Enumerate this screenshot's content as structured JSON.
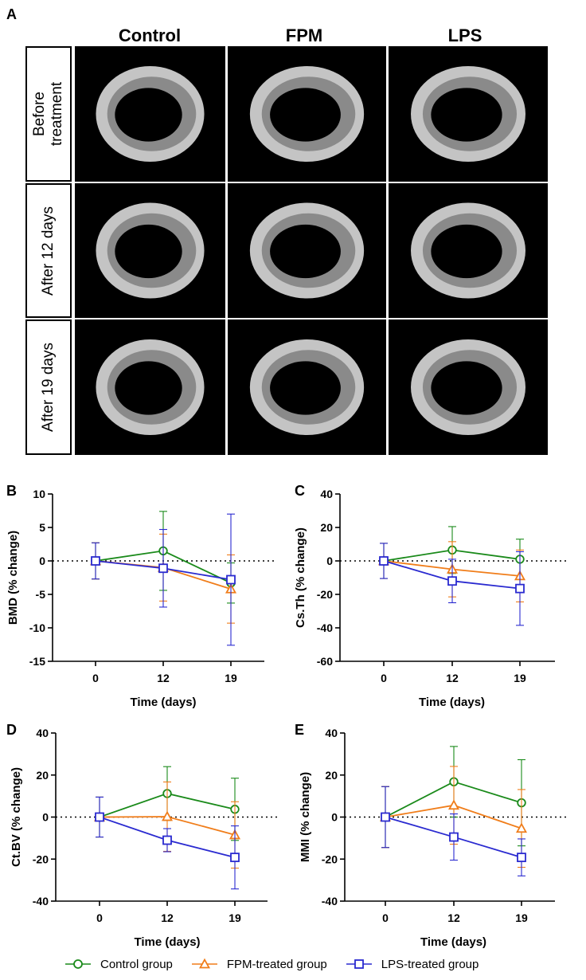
{
  "figure": {
    "panel_a_letter": "A",
    "columns": [
      "Control",
      "FPM",
      "LPS"
    ],
    "rows": [
      "Before\ntreatment",
      "After 12 days",
      "After 19 days"
    ]
  },
  "colors": {
    "control": "#1a8a1a",
    "fpm": "#f07d1a",
    "lps": "#2a2ad0"
  },
  "legend": [
    {
      "label": "Control group",
      "marker": "circle",
      "color": "#1a8a1a"
    },
    {
      "label": "FPM-treated group",
      "marker": "triangle",
      "color": "#f07d1a"
    },
    {
      "label": "LPS-treated group",
      "marker": "square",
      "color": "#2a2ad0"
    }
  ],
  "chart_data": [
    {
      "panel": "B",
      "type": "line",
      "title": "",
      "xlabel": "Time (days)",
      "ylabel": "BMD (% change)",
      "x": [
        0,
        12,
        19
      ],
      "xticks": [
        "0",
        "12",
        "19"
      ],
      "ylim": [
        -15,
        10
      ],
      "yticks": [
        -15,
        -10,
        -5,
        0,
        5,
        10
      ],
      "series": [
        {
          "name": "Control group",
          "values": [
            0,
            1.5,
            -3.3
          ],
          "err": [
            2.7,
            5.9,
            3.0
          ]
        },
        {
          "name": "FPM-treated group",
          "values": [
            0,
            -1.0,
            -4.2
          ],
          "err": [
            2.7,
            5.0,
            5.1
          ]
        },
        {
          "name": "LPS-treated group",
          "values": [
            0,
            -1.1,
            -2.8
          ],
          "err": [
            2.7,
            5.8,
            9.8
          ]
        }
      ]
    },
    {
      "panel": "C",
      "type": "line",
      "title": "",
      "xlabel": "Time (days)",
      "ylabel": "Cs.Th (% change)",
      "x": [
        0,
        12,
        19
      ],
      "xticks": [
        "0",
        "12",
        "19"
      ],
      "ylim": [
        -60,
        40
      ],
      "yticks": [
        -60,
        -40,
        -20,
        0,
        20,
        40
      ],
      "series": [
        {
          "name": "Control group",
          "values": [
            0,
            6.5,
            1.0
          ],
          "err": [
            10.5,
            14.0,
            12.0
          ]
        },
        {
          "name": "FPM-treated group",
          "values": [
            0,
            -5.0,
            -9.0
          ],
          "err": [
            10.5,
            16.5,
            15.5
          ]
        },
        {
          "name": "LPS-treated group",
          "values": [
            0,
            -12.0,
            -16.5
          ],
          "err": [
            10.5,
            13.0,
            22.0
          ]
        }
      ]
    },
    {
      "panel": "D",
      "type": "line",
      "title": "",
      "xlabel": "Time (days)",
      "ylabel": "Ct.BV (% change)",
      "x": [
        0,
        12,
        19
      ],
      "xticks": [
        "0",
        "12",
        "19"
      ],
      "ylim": [
        -40,
        40
      ],
      "yticks": [
        -40,
        -20,
        0,
        20,
        40
      ],
      "series": [
        {
          "name": "Control group",
          "values": [
            0,
            11.2,
            3.7
          ],
          "err": [
            9.5,
            12.8,
            14.8
          ]
        },
        {
          "name": "FPM-treated group",
          "values": [
            0,
            0.2,
            -8.5
          ],
          "err": [
            9.5,
            16.5,
            15.8
          ]
        },
        {
          "name": "LPS-treated group",
          "values": [
            0,
            -11.0,
            -19.2
          ],
          "err": [
            9.5,
            5.5,
            15.0
          ]
        }
      ]
    },
    {
      "panel": "E",
      "type": "line",
      "title": "",
      "xlabel": "Time (days)",
      "ylabel": "MMI (% change)",
      "x": [
        0,
        12,
        19
      ],
      "xticks": [
        "0",
        "12",
        "19"
      ],
      "ylim": [
        -40,
        40
      ],
      "yticks": [
        -40,
        -20,
        0,
        20,
        40
      ],
      "series": [
        {
          "name": "Control group",
          "values": [
            0,
            16.8,
            6.8
          ],
          "err": [
            14.5,
            16.8,
            20.5
          ]
        },
        {
          "name": "FPM-treated group",
          "values": [
            0,
            5.6,
            -5.4
          ],
          "err": [
            14.5,
            18.5,
            18.5
          ]
        },
        {
          "name": "LPS-treated group",
          "values": [
            0,
            -9.5,
            -19.2
          ],
          "err": [
            14.5,
            11.0,
            8.8
          ]
        }
      ]
    }
  ]
}
